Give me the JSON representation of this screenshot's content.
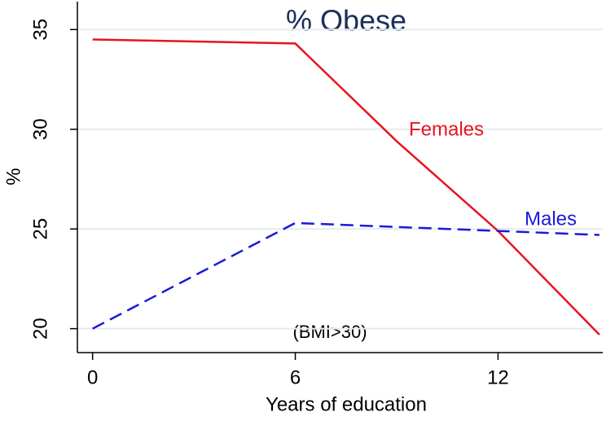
{
  "chart_data": {
    "type": "line",
    "title": "% Obese",
    "subtitle": "(BMI>30)",
    "x_label": "Years of education",
    "y_label": "%",
    "x": [
      0,
      6,
      9,
      12,
      15
    ],
    "series": [
      {
        "name": "Females",
        "color": "#e8141e",
        "dash": "solid",
        "values": [
          34.5,
          34.3,
          29.4,
          24.9,
          19.7
        ]
      },
      {
        "name": "Males",
        "color": "#1a1adb",
        "dash": "dashed",
        "values": [
          20.0,
          25.3,
          25.1,
          24.9,
          24.7
        ]
      }
    ],
    "xlim": [
      -0.45,
      15.1
    ],
    "xticks": [
      0,
      6,
      12
    ],
    "ylim": [
      18.8,
      36.4
    ],
    "yticks": [
      20,
      25,
      30,
      35
    ],
    "grid": true
  }
}
